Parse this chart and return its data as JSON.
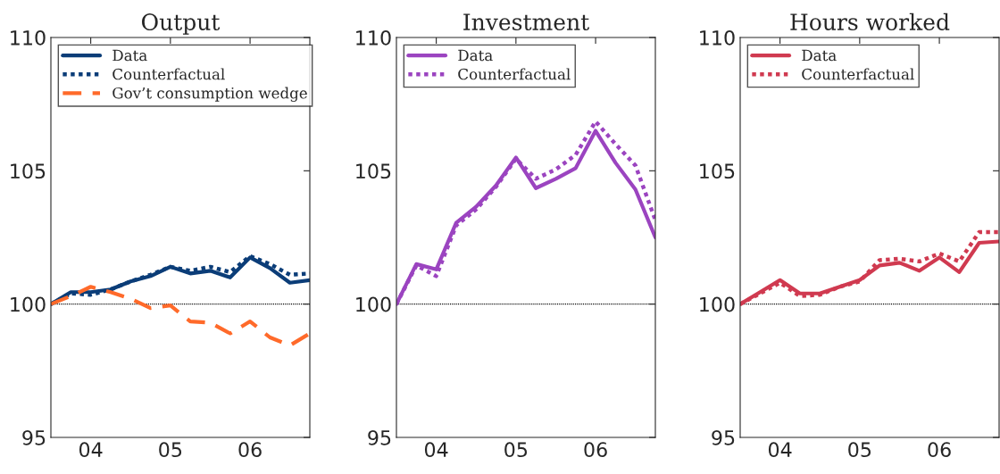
{
  "chart_data": [
    {
      "type": "line",
      "title": "Output",
      "x": [
        2003.5,
        2003.75,
        2004.0,
        2004.25,
        2004.5,
        2004.75,
        2005.0,
        2005.25,
        2005.5,
        2005.75,
        2006.0,
        2006.25,
        2006.5,
        2006.75
      ],
      "series": [
        {
          "name": "Data",
          "color": "#0b3d78",
          "line_style": "solid",
          "values": [
            100,
            100.45,
            100.45,
            100.55,
            100.85,
            101.05,
            101.4,
            101.15,
            101.25,
            101.0,
            101.75,
            101.35,
            100.8,
            100.9
          ]
        },
        {
          "name": "Counterfactual",
          "color": "#0b3d78",
          "line_style": "dotted",
          "values": [
            100,
            100.4,
            100.35,
            100.55,
            100.85,
            101.1,
            101.4,
            101.25,
            101.4,
            101.2,
            101.8,
            101.5,
            101.1,
            101.15
          ]
        },
        {
          "name": "Gov’t consumption wedge",
          "color": "#ff6a2a",
          "line_style": "dashed",
          "values": [
            100,
            100.3,
            100.65,
            100.45,
            100.2,
            99.85,
            99.95,
            99.35,
            99.3,
            98.9,
            99.35,
            98.75,
            98.45,
            98.9
          ]
        }
      ],
      "xlim": [
        2003.5,
        2006.75
      ],
      "xticks": [
        {
          "value": 2004,
          "label": "04"
        },
        {
          "value": 2005,
          "label": "05"
        },
        {
          "value": 2006,
          "label": "06"
        }
      ],
      "ylim": [
        95,
        110
      ],
      "yticks": [
        95,
        100,
        105,
        110
      ],
      "ref_lines": [
        {
          "axis": "y",
          "value": 100,
          "color": "#000000",
          "line_style": "dotted"
        }
      ],
      "legend": "top left",
      "grid": false
    },
    {
      "type": "line",
      "title": "Investment",
      "x": [
        2003.5,
        2003.75,
        2004.0,
        2004.25,
        2004.5,
        2004.75,
        2005.0,
        2005.25,
        2005.5,
        2005.75,
        2006.0,
        2006.25,
        2006.5,
        2006.75
      ],
      "series": [
        {
          "name": "Data",
          "color": "#9b44c0",
          "line_style": "solid",
          "values": [
            100,
            101.5,
            101.3,
            103.05,
            103.65,
            104.45,
            105.5,
            104.35,
            104.7,
            105.1,
            106.5,
            105.3,
            104.3,
            102.5
          ]
        },
        {
          "name": "Counterfactual",
          "color": "#9b44c0",
          "line_style": "dotted",
          "values": [
            100,
            101.45,
            101.05,
            102.95,
            103.55,
            104.4,
            105.45,
            104.7,
            105.05,
            105.6,
            106.85,
            106.0,
            105.2,
            103.15
          ]
        }
      ],
      "xlim": [
        2003.5,
        2006.75
      ],
      "xticks": [
        {
          "value": 2004,
          "label": "04"
        },
        {
          "value": 2005,
          "label": "05"
        },
        {
          "value": 2006,
          "label": "06"
        }
      ],
      "ylim": [
        95,
        110
      ],
      "yticks": [
        95,
        100,
        105,
        110
      ],
      "ref_lines": [
        {
          "axis": "y",
          "value": 100,
          "color": "#000000",
          "line_style": "dotted"
        }
      ],
      "legend": "top left",
      "grid": false
    },
    {
      "type": "line",
      "title": "Hours worked",
      "x": [
        2003.5,
        2003.75,
        2004.0,
        2004.25,
        2004.5,
        2004.75,
        2005.0,
        2005.25,
        2005.5,
        2005.75,
        2006.0,
        2006.25,
        2006.5,
        2006.75
      ],
      "series": [
        {
          "name": "Data",
          "color": "#d03a50",
          "line_style": "solid",
          "values": [
            100,
            100.45,
            100.9,
            100.4,
            100.4,
            100.65,
            100.9,
            101.45,
            101.55,
            101.25,
            101.75,
            101.2,
            102.3,
            102.35
          ]
        },
        {
          "name": "Counterfactual",
          "color": "#d03a50",
          "line_style": "dotted",
          "values": [
            100,
            100.4,
            100.8,
            100.3,
            100.35,
            100.65,
            100.85,
            101.65,
            101.7,
            101.6,
            101.9,
            101.6,
            102.7,
            102.7
          ]
        }
      ],
      "xlim": [
        2003.5,
        2006.75
      ],
      "xticks": [
        {
          "value": 2004,
          "label": "04"
        },
        {
          "value": 2005,
          "label": "05"
        },
        {
          "value": 2006,
          "label": "06"
        }
      ],
      "ylim": [
        95,
        110
      ],
      "yticks": [
        95,
        100,
        105,
        110
      ],
      "ref_lines": [
        {
          "axis": "y",
          "value": 100,
          "color": "#000000",
          "line_style": "dotted"
        }
      ],
      "legend": "top left",
      "grid": false
    }
  ]
}
